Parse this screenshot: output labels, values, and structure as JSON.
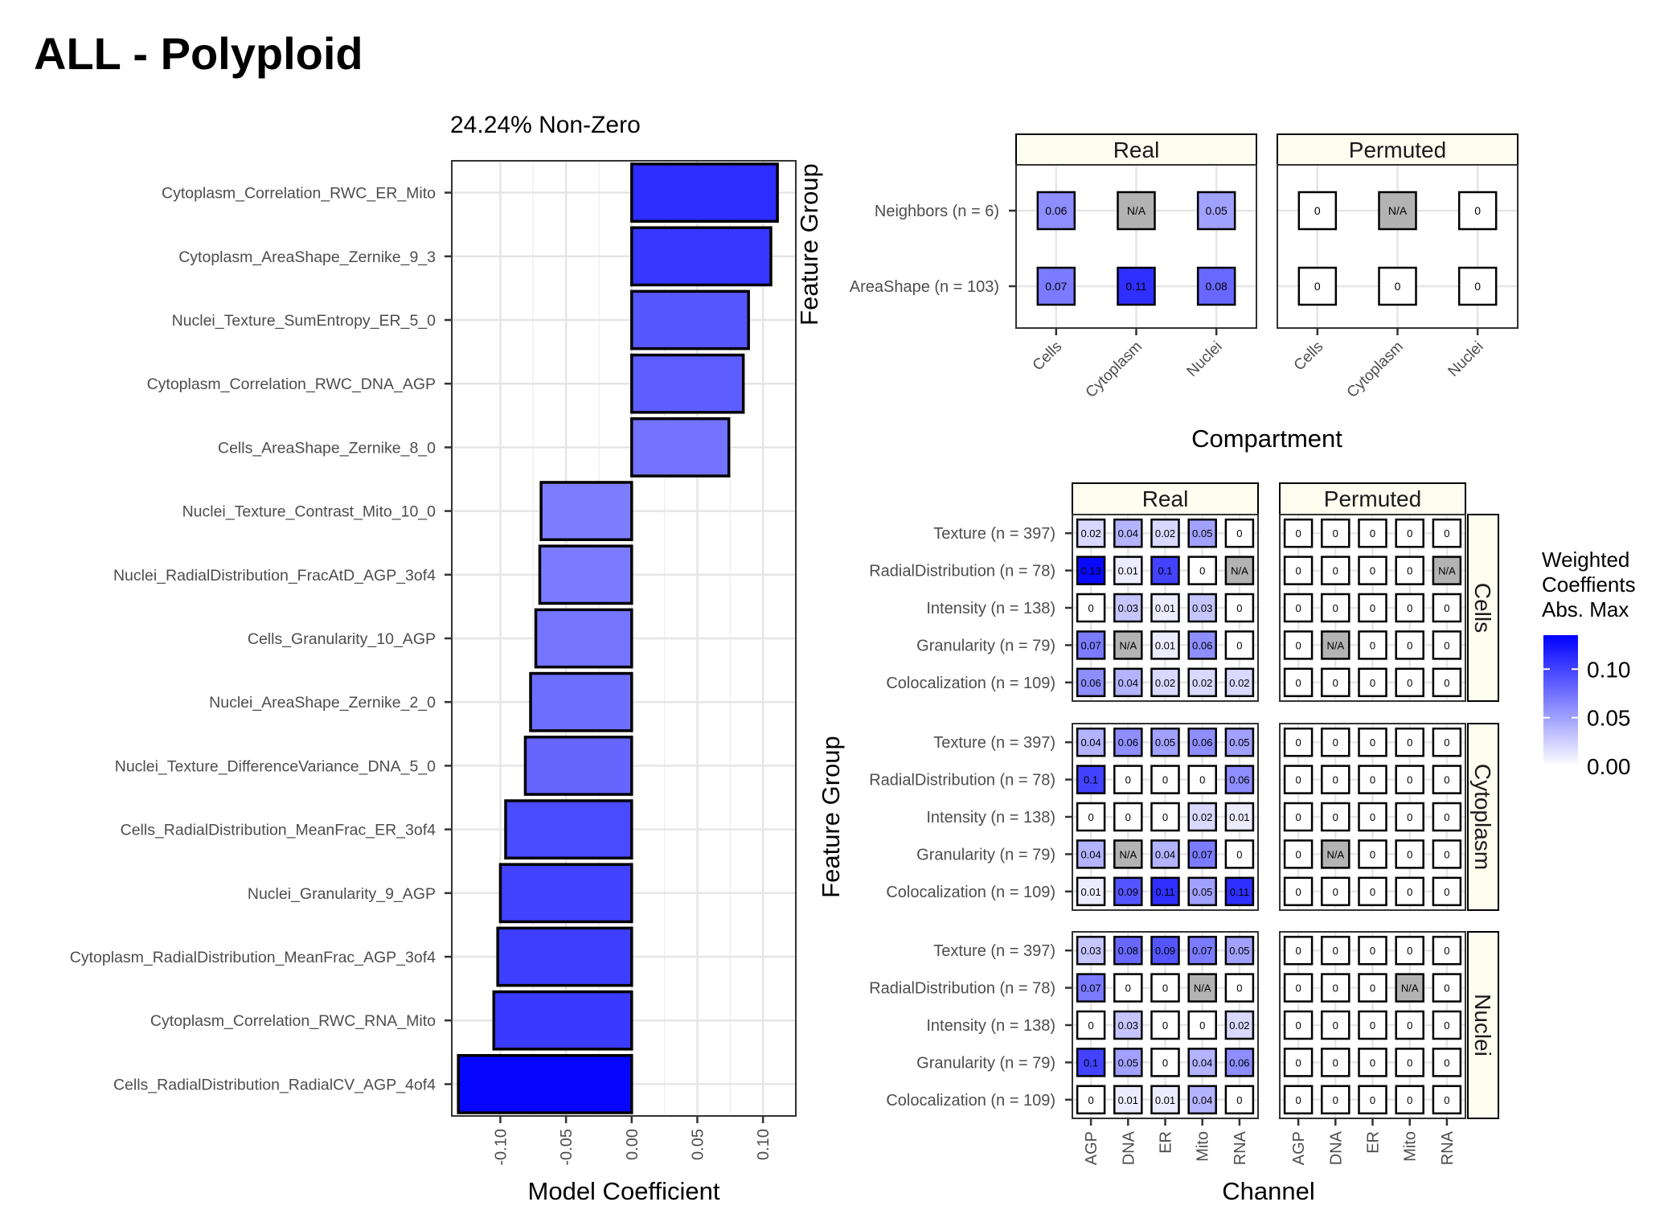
{
  "title": "ALL - Polyploid",
  "colors": {
    "low": "#ffffff",
    "high": "#0000ff",
    "na": "#b3b3b3",
    "grid": "#e6e6e6",
    "strip": "#fdfdf0"
  },
  "chart_data": [
    {
      "type": "bar",
      "orientation": "horizontal",
      "subtitle": "24.24% Non-Zero",
      "xlabel": "Model Coefficient",
      "ylabel": "",
      "xlim": [
        -0.137,
        0.125
      ],
      "xticks": [
        "-0.10",
        "-0.05",
        "0.00",
        "0.05",
        "0.10"
      ],
      "xtick_values": [
        -0.1,
        -0.05,
        0.0,
        0.05,
        0.1
      ],
      "categories": [
        "Cytoplasm_Correlation_RWC_ER_Mito",
        "Cytoplasm_AreaShape_Zernike_9_3",
        "Nuclei_Texture_SumEntropy_ER_5_0",
        "Cytoplasm_Correlation_RWC_DNA_AGP",
        "Cells_AreaShape_Zernike_8_0",
        "Nuclei_Texture_Contrast_Mito_10_0",
        "Nuclei_RadialDistribution_FracAtD_AGP_3of4",
        "Cells_Granularity_10_AGP",
        "Nuclei_AreaShape_Zernike_2_0",
        "Nuclei_Texture_DifferenceVariance_DNA_5_0",
        "Cells_RadialDistribution_MeanFrac_ER_3of4",
        "Nuclei_Granularity_9_AGP",
        "Cytoplasm_RadialDistribution_MeanFrac_AGP_3of4",
        "Cytoplasm_Correlation_RWC_RNA_Mito",
        "Cells_RadialDistribution_RadialCV_AGP_4of4"
      ],
      "values": [
        0.111,
        0.106,
        0.089,
        0.085,
        0.074,
        -0.069,
        -0.07,
        -0.073,
        -0.077,
        -0.081,
        -0.096,
        -0.1,
        -0.102,
        -0.105,
        -0.132
      ],
      "grid": true
    },
    {
      "type": "heatmap",
      "xlabel": "Compartment",
      "ylabel": "Feature Group",
      "facets": [
        "Real",
        "Permuted"
      ],
      "columns": [
        "Cells",
        "Cytoplasm",
        "Nuclei"
      ],
      "rows": [
        "Neighbors (n = 6)",
        "AreaShape (n = 103)"
      ],
      "values": {
        "Real": [
          [
            0.06,
            null,
            0.05
          ],
          [
            0.07,
            0.11,
            0.08
          ]
        ],
        "Permuted": [
          [
            0,
            null,
            0
          ],
          [
            0,
            0,
            0
          ]
        ]
      },
      "labels": {
        "Real": [
          [
            "0.06",
            "N/A",
            "0.05"
          ],
          [
            "0.07",
            "0.11",
            "0.08"
          ]
        ],
        "Permuted": [
          [
            "0",
            "N/A",
            "0"
          ],
          [
            "0",
            "0",
            "0"
          ]
        ]
      }
    },
    {
      "type": "heatmap",
      "xlabel": "Channel",
      "ylabel": "Feature Group",
      "col_facets": [
        "Real",
        "Permuted"
      ],
      "row_facets": [
        "Cells",
        "Cytoplasm",
        "Nuclei"
      ],
      "columns": [
        "AGP",
        "DNA",
        "ER",
        "Mito",
        "RNA"
      ],
      "rows": [
        "Texture (n = 397)",
        "RadialDistribution (n = 78)",
        "Intensity (n = 138)",
        "Granularity (n = 79)",
        "Colocalization (n = 109)"
      ],
      "values": {
        "Real": {
          "Cells": [
            [
              0.02,
              0.04,
              0.02,
              0.05,
              0
            ],
            [
              0.13,
              0.01,
              0.1,
              0,
              null
            ],
            [
              0,
              0.03,
              0.01,
              0.03,
              0
            ],
            [
              0.07,
              null,
              0.01,
              0.06,
              0
            ],
            [
              0.06,
              0.04,
              0.02,
              0.02,
              0.02
            ]
          ],
          "Cytoplasm": [
            [
              0.04,
              0.06,
              0.05,
              0.06,
              0.05
            ],
            [
              0.1,
              0,
              0,
              0,
              0.06
            ],
            [
              0,
              0,
              0,
              0.02,
              0.01
            ],
            [
              0.04,
              null,
              0.04,
              0.07,
              0
            ],
            [
              0.01,
              0.09,
              0.11,
              0.05,
              0.11
            ]
          ],
          "Nuclei": [
            [
              0.03,
              0.08,
              0.09,
              0.07,
              0.05
            ],
            [
              0.07,
              0,
              0,
              null,
              0
            ],
            [
              0,
              0.03,
              0,
              0,
              0.02
            ],
            [
              0.1,
              0.05,
              0,
              0.04,
              0.06
            ],
            [
              0,
              0.01,
              0.01,
              0.04,
              0
            ]
          ]
        },
        "Permuted": {
          "Cells": [
            [
              0,
              0,
              0,
              0,
              0
            ],
            [
              0,
              0,
              0,
              0,
              null
            ],
            [
              0,
              0,
              0,
              0,
              0
            ],
            [
              0,
              null,
              0,
              0,
              0
            ],
            [
              0,
              0,
              0,
              0,
              0
            ]
          ],
          "Cytoplasm": [
            [
              0,
              0,
              0,
              0,
              0
            ],
            [
              0,
              0,
              0,
              0,
              0
            ],
            [
              0,
              0,
              0,
              0,
              0
            ],
            [
              0,
              null,
              0,
              0,
              0
            ],
            [
              0,
              0,
              0,
              0,
              0
            ]
          ],
          "Nuclei": [
            [
              0,
              0,
              0,
              0,
              0
            ],
            [
              0,
              0,
              0,
              null,
              0
            ],
            [
              0,
              0,
              0,
              0,
              0
            ],
            [
              0,
              0,
              0,
              0,
              0
            ],
            [
              0,
              0,
              0,
              0,
              0
            ]
          ]
        }
      },
      "labels": {
        "Real": {
          "Cells": [
            [
              "0.02",
              "0.04",
              "0.02",
              "0.05",
              "0"
            ],
            [
              "0.13",
              "0.01",
              "0.1",
              "0",
              "N/A"
            ],
            [
              "0",
              "0.03",
              "0.01",
              "0.03",
              "0"
            ],
            [
              "0.07",
              "N/A",
              "0.01",
              "0.06",
              "0"
            ],
            [
              "0.06",
              "0.04",
              "0.02",
              "0.02",
              "0.02"
            ]
          ],
          "Cytoplasm": [
            [
              "0.04",
              "0.06",
              "0.05",
              "0.06",
              "0.05"
            ],
            [
              "0.1",
              "0",
              "0",
              "0",
              "0.06"
            ],
            [
              "0",
              "0",
              "0",
              "0.02",
              "0.01"
            ],
            [
              "0.04",
              "N/A",
              "0.04",
              "0.07",
              "0"
            ],
            [
              "0.01",
              "0.09",
              "0.11",
              "0.05",
              "0.11"
            ]
          ],
          "Nuclei": [
            [
              "0.03",
              "0.08",
              "0.09",
              "0.07",
              "0.05"
            ],
            [
              "0.07",
              "0",
              "0",
              "N/A",
              "0"
            ],
            [
              "0",
              "0.03",
              "0",
              "0",
              "0.02"
            ],
            [
              "0.1",
              "0.05",
              "0",
              "0.04",
              "0.06"
            ],
            [
              "0",
              "0.01",
              "0.01",
              "0.04",
              "0"
            ]
          ]
        },
        "Permuted": {
          "Cells": [
            [
              "0",
              "0",
              "0",
              "0",
              "0"
            ],
            [
              "0",
              "0",
              "0",
              "0",
              "N/A"
            ],
            [
              "0",
              "0",
              "0",
              "0",
              "0"
            ],
            [
              "0",
              "N/A",
              "0",
              "0",
              "0"
            ],
            [
              "0",
              "0",
              "0",
              "0",
              "0"
            ]
          ],
          "Cytoplasm": [
            [
              "0",
              "0",
              "0",
              "0",
              "0"
            ],
            [
              "0",
              "0",
              "0",
              "0",
              "0"
            ],
            [
              "0",
              "0",
              "0",
              "0",
              "0"
            ],
            [
              "0",
              "N/A",
              "0",
              "0",
              "0"
            ],
            [
              "0",
              "0",
              "0",
              "0",
              "0"
            ]
          ],
          "Nuclei": [
            [
              "0",
              "0",
              "0",
              "0",
              "0"
            ],
            [
              "0",
              "0",
              "0",
              "N/A",
              "0"
            ],
            [
              "0",
              "0",
              "0",
              "0",
              "0"
            ],
            [
              "0",
              "0",
              "0",
              "0",
              "0"
            ],
            [
              "0",
              "0",
              "0",
              "0",
              "0"
            ]
          ]
        }
      }
    }
  ],
  "legend": {
    "title": [
      "Weighted",
      "Coeffients",
      "Abs. Max"
    ],
    "ticks": [
      "0.10",
      "0.05",
      "0.00"
    ],
    "tick_values": [
      0.1,
      0.05,
      0.0
    ],
    "max": 0.135,
    "placement": "right"
  }
}
